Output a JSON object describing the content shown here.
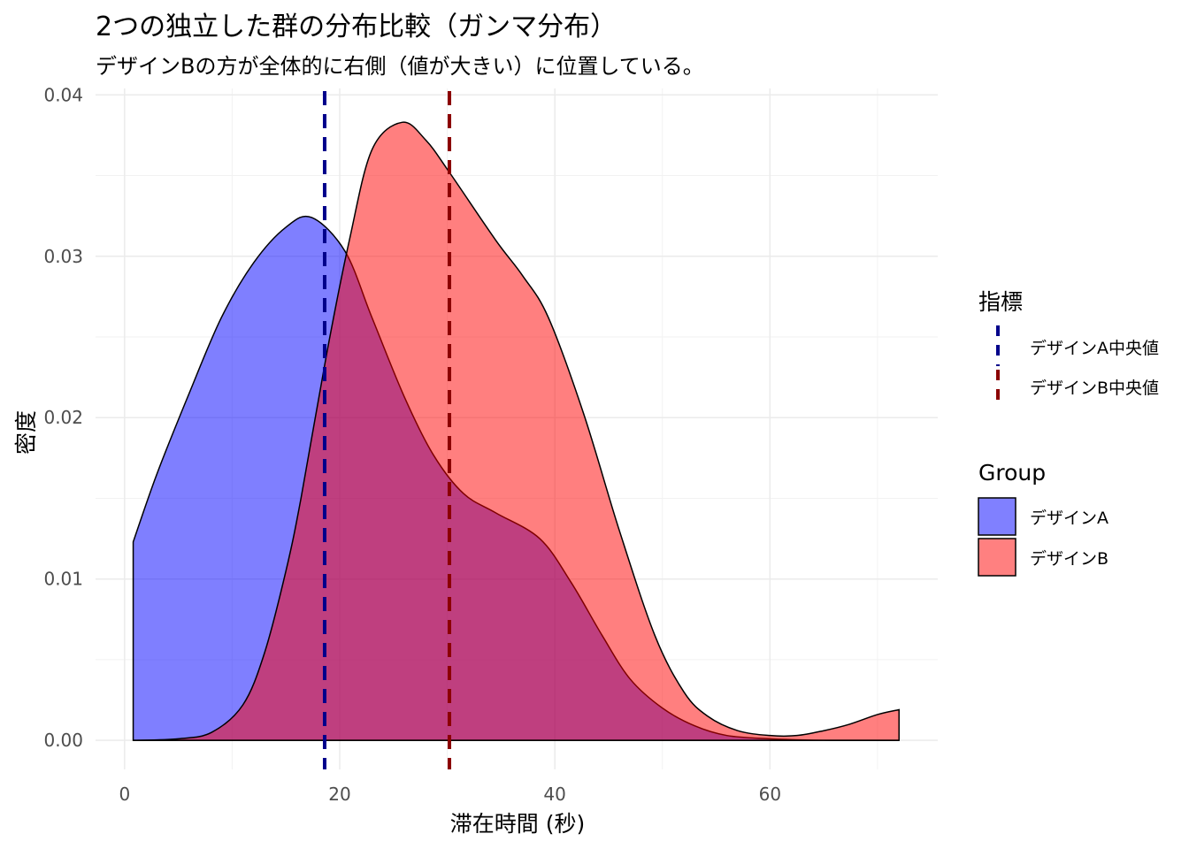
{
  "chart_data": {
    "type": "area",
    "title": "2つの独立した群の分布比較（ガンマ分布）",
    "subtitle": "デザインBの方が全体的に右側（値が大きい）に位置している。",
    "xlabel": "滞在時間 (秒)",
    "ylabel": "密度",
    "xlim": [
      -2.7,
      75.6
    ],
    "ylim": [
      -0.0018,
      0.0404
    ],
    "xticks": [
      0,
      20,
      40,
      60
    ],
    "xtick_labels": [
      "0",
      "20",
      "40",
      "60"
    ],
    "yticks": [
      0,
      0.01,
      0.02,
      0.03,
      0.04
    ],
    "ytick_labels": [
      "0.00",
      "0.01",
      "0.02",
      "0.03",
      "0.04"
    ],
    "grid": true,
    "series": [
      {
        "name": "デザインA",
        "color": "#0000FF",
        "opacity": 0.5,
        "x": [
          0.8,
          3,
          6,
          9,
          12,
          15,
          17.4,
          20.5,
          23,
          26,
          28.7,
          31.5,
          34.5,
          38.6,
          41.5,
          44.4,
          47,
          50,
          53,
          56,
          60,
          65,
          72
        ],
        "y": [
          0.0123,
          0.0165,
          0.0215,
          0.0262,
          0.0296,
          0.0318,
          0.0324,
          0.0303,
          0.0262,
          0.0213,
          0.0177,
          0.0153,
          0.0141,
          0.0125,
          0.0098,
          0.0065,
          0.0038,
          0.002,
          0.0009,
          0.0003,
          0.0001,
          0.0,
          0.0
        ]
      },
      {
        "name": "デザインB",
        "color": "#FF0000",
        "opacity": 0.5,
        "x": [
          0.8,
          5,
          8.1,
          11,
          13,
          15,
          16.4,
          18.8,
          20.9,
          23,
          25.8,
          28,
          30.2,
          34.5,
          37,
          39.4,
          42.7,
          46,
          49.3,
          52,
          54.2,
          57,
          60,
          62.5,
          65,
          67.4,
          70,
          72
        ],
        "y": [
          0.0,
          0.0001,
          0.0005,
          0.0022,
          0.0054,
          0.0105,
          0.015,
          0.024,
          0.031,
          0.0366,
          0.0383,
          0.0372,
          0.0352,
          0.031,
          0.0288,
          0.0262,
          0.0202,
          0.013,
          0.0065,
          0.003,
          0.0015,
          0.0006,
          0.0003,
          0.0003,
          0.0006,
          0.001,
          0.0016,
          0.0019
        ]
      }
    ],
    "vlines": [
      {
        "name": "デザインA中央値",
        "x": 18.6,
        "color": "#00008B",
        "style": "dashed"
      },
      {
        "name": "デザインB中央値",
        "x": 30.2,
        "color": "#8B0000",
        "style": "dashed"
      }
    ],
    "legends": [
      {
        "title": "指標",
        "entries": [
          "デザインA中央値",
          "デザインB中央値"
        ],
        "placement": "right"
      },
      {
        "title": "Group",
        "entries": [
          "デザインA",
          "デザインB"
        ],
        "placement": "right"
      }
    ]
  }
}
